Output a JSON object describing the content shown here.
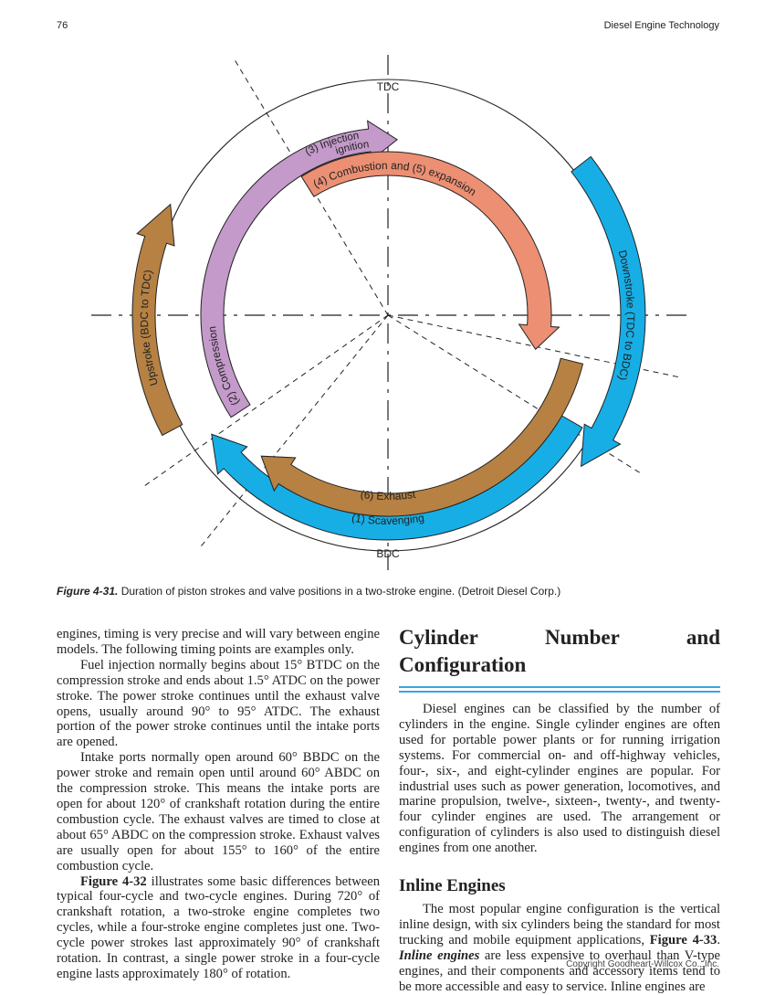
{
  "header": {
    "page_number": "76",
    "running_title": "Diesel Engine Technology"
  },
  "figure": {
    "labels": {
      "tdc": "TDC",
      "bdc": "BDC",
      "injection_line1": "(3) Injection",
      "injection_line2": "ignition",
      "combustion": "(4) Combustion and (5) expansion",
      "downstroke": "Downstroke (TDC to BDC)",
      "upstroke": "Upstroke (BDC to TDC)",
      "compression": "(2) Compression",
      "exhaust": "(6) Exhaust",
      "scavenging": "(1) Scavenging"
    },
    "caption": {
      "label": "Figure 4-31.",
      "text": "Duration of piston strokes and valve positions in a two-stroke engine. (Detroit Diesel Corp.)"
    }
  },
  "left_column": {
    "paragraphs": [
      [
        {
          "text": "engines, timing is very precise and will vary between engine models. The following timing points are examples only.",
          "style": "normal"
        }
      ],
      [
        {
          "text": "Fuel injection normally begins about 15° BTDC on the compression stroke and ends about 1.5° ATDC on the power stroke. The power stroke continues until the exhaust valve opens, usually around 90° to 95° ATDC. The exhaust portion of the power stroke continues until the intake ports are opened.",
          "style": "normal"
        }
      ],
      [
        {
          "text": "Intake ports normally open around 60° BBDC on the power stroke and remain open until around 60° ABDC on the compression stroke. This means the intake ports are open for about 120° of crankshaft rotation during the entire combustion cycle. The exhaust valves are timed to close at about 65° ABDC on the compression stroke. Exhaust valves are usually open for about 155° to 160° of the entire combustion cycle.",
          "style": "normal"
        }
      ],
      [
        {
          "text": "Figure 4-32",
          "style": "bold"
        },
        {
          "text": " illustrates some basic differences between typical four-cycle and two-cycle engines. During 720° of crankshaft rotation, a two-stroke engine completes two cycles, while a four-stroke engine completes just one. Two-cycle power strokes last approximately 90° of crankshaft rotation. In contrast, a single power stroke in a four-cycle engine lasts approximately 180° of rotation.",
          "style": "normal"
        }
      ]
    ]
  },
  "right_column": {
    "heading": "Cylinder Number and Configuration",
    "paragraphs": [
      [
        {
          "text": "Diesel engines can be classified by the number of cylinders in the engine. Single cylinder engines are often used for portable power plants or for running irrigation systems. For commercial on- and off-highway vehicles, four-, six-, and eight-cylinder engines are popular. For industrial uses such as power generation, locomotives, and marine propulsion, twelve-, sixteen-, twenty-, and twenty-four cylinder engines are used. The arrangement or configuration of cylinders is also used to distinguish diesel engines from one another.",
          "style": "normal"
        }
      ]
    ],
    "subheading": "Inline Engines",
    "subsection_paragraphs": [
      [
        {
          "text": "The most popular engine configuration is the vertical inline design, with six cylinders being the standard for most trucking and mobile equipment applications, ",
          "style": "normal"
        },
        {
          "text": "Figure 4-33",
          "style": "bold"
        },
        {
          "text": ". ",
          "style": "normal"
        },
        {
          "text": "Inline engines",
          "style": "bold-italic"
        },
        {
          "text": " are less expensive to overhaul than V-type engines, and their components and accessory items tend to be more accessible and easy to service. Inline engines are",
          "style": "normal"
        }
      ]
    ]
  },
  "footer": {
    "copyright": "Copyright Goodheart-Willcox Co., Inc."
  }
}
